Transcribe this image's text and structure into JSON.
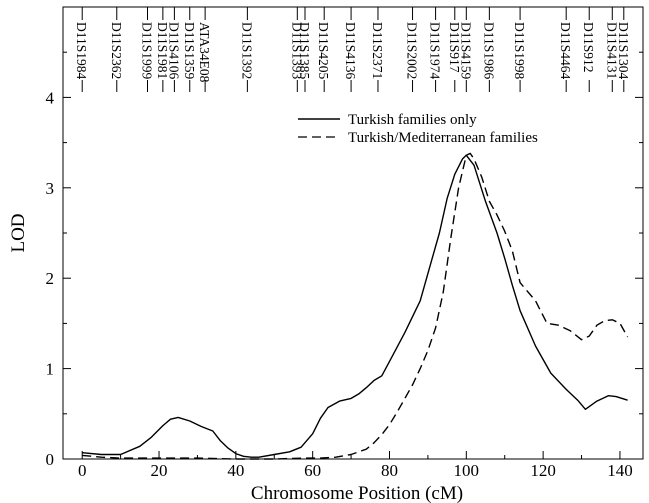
{
  "chart_data": {
    "type": "line",
    "xlabel": "Chromosome Position (cM)",
    "ylabel": "LOD",
    "xlim": [
      -5,
      146
    ],
    "ylim": [
      0,
      5
    ],
    "xticks": [
      0,
      20,
      40,
      60,
      80,
      100,
      120,
      140
    ],
    "yticks": [
      0,
      1,
      2,
      3,
      4
    ],
    "legend_position": "top-right",
    "grid": false,
    "markers": [
      {
        "name": "D11S1984",
        "pos": 0
      },
      {
        "name": "D11S2362",
        "pos": 9
      },
      {
        "name": "D11S1999",
        "pos": 17
      },
      {
        "name": "D11S1981",
        "pos": 21
      },
      {
        "name": "D11S4106",
        "pos": 24
      },
      {
        "name": "D11S1359",
        "pos": 28
      },
      {
        "name": "ATA34E08",
        "pos": 32
      },
      {
        "name": "D11S1392",
        "pos": 43
      },
      {
        "name": "D11S1393",
        "pos": 56
      },
      {
        "name": "D11S1385",
        "pos": 58
      },
      {
        "name": "D11S4205",
        "pos": 63
      },
      {
        "name": "D11S4136",
        "pos": 70
      },
      {
        "name": "D11S2371",
        "pos": 77
      },
      {
        "name": "D11S2002",
        "pos": 86
      },
      {
        "name": "D11S1974",
        "pos": 92
      },
      {
        "name": "D11S917",
        "pos": 97
      },
      {
        "name": "D11S4159",
        "pos": 100
      },
      {
        "name": "D11S1986",
        "pos": 106
      },
      {
        "name": "D11S1998",
        "pos": 114
      },
      {
        "name": "D11S4464",
        "pos": 126
      },
      {
        "name": "D11S912",
        "pos": 132
      },
      {
        "name": "D11S4131",
        "pos": 138
      },
      {
        "name": "D11S1304",
        "pos": 141
      }
    ],
    "series": [
      {
        "name": "Turkish families only",
        "style": "solid",
        "color": "#000000",
        "x": [
          0,
          5,
          10,
          15,
          18,
          21,
          23,
          25,
          28,
          31,
          34,
          36,
          38,
          40,
          42,
          44,
          46,
          50,
          54,
          57,
          60,
          62,
          64,
          67,
          70,
          72,
          74,
          76,
          78,
          80,
          84,
          88,
          91,
          93,
          95,
          97,
          99,
          100,
          102,
          105,
          108,
          110,
          112,
          114,
          118,
          122,
          126,
          129,
          131,
          134,
          137,
          139,
          142
        ],
        "y": [
          0.07,
          0.05,
          0.05,
          0.14,
          0.24,
          0.37,
          0.44,
          0.46,
          0.42,
          0.36,
          0.31,
          0.2,
          0.12,
          0.06,
          0.03,
          0.02,
          0.02,
          0.05,
          0.08,
          0.13,
          0.28,
          0.45,
          0.57,
          0.64,
          0.67,
          0.72,
          0.79,
          0.87,
          0.92,
          1.08,
          1.4,
          1.75,
          2.2,
          2.5,
          2.88,
          3.15,
          3.32,
          3.36,
          3.25,
          2.85,
          2.5,
          2.22,
          1.92,
          1.64,
          1.25,
          0.95,
          0.77,
          0.65,
          0.55,
          0.64,
          0.7,
          0.69,
          0.65
        ]
      },
      {
        "name": "Turkish/Mediterranean families",
        "style": "dashed",
        "color": "#000000",
        "x": [
          0,
          5,
          10,
          20,
          30,
          40,
          50,
          58,
          62,
          66,
          70,
          74,
          76,
          78,
          80,
          82,
          84,
          86,
          88,
          90,
          92,
          94,
          96,
          98,
          100,
          101,
          102,
          104,
          106,
          108,
          110,
          112,
          114,
          118,
          121,
          124,
          127,
          130,
          132,
          134,
          136,
          138,
          140,
          142
        ],
        "y": [
          0.04,
          0.02,
          0.01,
          0.01,
          0.01,
          0.0,
          0.0,
          0.01,
          0.01,
          0.02,
          0.05,
          0.11,
          0.18,
          0.27,
          0.38,
          0.52,
          0.67,
          0.82,
          1.0,
          1.2,
          1.45,
          1.85,
          2.45,
          3.0,
          3.36,
          3.38,
          3.32,
          3.12,
          2.85,
          2.7,
          2.52,
          2.3,
          1.95,
          1.75,
          1.5,
          1.48,
          1.42,
          1.32,
          1.36,
          1.48,
          1.53,
          1.54,
          1.5,
          1.35
        ]
      }
    ]
  }
}
